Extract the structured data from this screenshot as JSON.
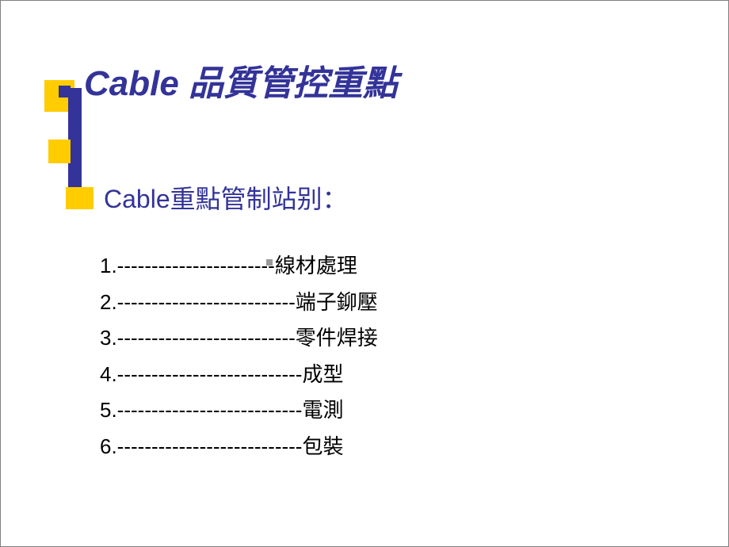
{
  "slide": {
    "title": "Cable 品質管控重點",
    "subtitle": "Cable重點管制站别：",
    "items": [
      "1.-----------------------線材處理",
      "2.--------------------------端子鉚壓",
      "3.--------------------------零件焊接",
      "4.---------------------------成型",
      "5.---------------------------電測",
      "6.---------------------------包裝"
    ],
    "colors": {
      "title_color": "#333399",
      "subtitle_color": "#333399",
      "text_color": "#000000",
      "accent_yellow": "#ffcc00",
      "accent_blue": "#333399",
      "background": "#ffffff"
    },
    "typography": {
      "title_fontsize": 44,
      "title_weight": "bold",
      "title_style": "italic",
      "subtitle_fontsize": 32,
      "body_fontsize": 26
    }
  }
}
